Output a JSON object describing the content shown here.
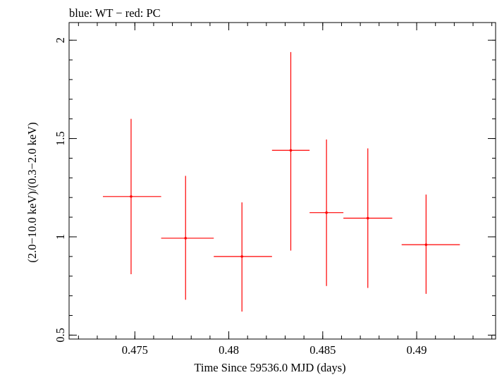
{
  "chart_data": {
    "type": "scatter",
    "title": "blue: WT − red: PC",
    "xlabel": "Time Since 59536.0 MJD (days)",
    "ylabel": "(2.0−10.0 keV)/(0.3−2.0 keV)",
    "xlim": [
      0.4715,
      0.4942
    ],
    "ylim": [
      0.48,
      2.09
    ],
    "x_ticks": [
      {
        "value": 0.475,
        "label": "0.475"
      },
      {
        "value": 0.48,
        "label": "0.48"
      },
      {
        "value": 0.485,
        "label": "0.485"
      },
      {
        "value": 0.49,
        "label": "0.49"
      }
    ],
    "y_ticks": [
      {
        "value": 0.5,
        "label": "0.5"
      },
      {
        "value": 1.0,
        "label": "1"
      },
      {
        "value": 1.5,
        "label": "1.5"
      },
      {
        "value": 2.0,
        "label": "2"
      }
    ],
    "x_minor_step": 0.001,
    "y_minor_step": 0.1,
    "grid": false,
    "series": [
      {
        "name": "PC",
        "color": "#ff0000",
        "points": [
          {
            "x": 0.4748,
            "xerr_low": 0.4733,
            "xerr_high": 0.4764,
            "y": 1.205,
            "yerr_low": 0.81,
            "yerr_high": 1.6
          },
          {
            "x": 0.4777,
            "xerr_low": 0.4764,
            "xerr_high": 0.4792,
            "y": 0.993,
            "yerr_low": 0.68,
            "yerr_high": 1.31
          },
          {
            "x": 0.4807,
            "xerr_low": 0.4792,
            "xerr_high": 0.4823,
            "y": 0.9,
            "yerr_low": 0.62,
            "yerr_high": 1.175
          },
          {
            "x": 0.4833,
            "xerr_low": 0.4823,
            "xerr_high": 0.4843,
            "y": 1.44,
            "yerr_low": 0.93,
            "yerr_high": 1.94
          },
          {
            "x": 0.4852,
            "xerr_low": 0.4843,
            "xerr_high": 0.4861,
            "y": 1.123,
            "yerr_low": 0.75,
            "yerr_high": 1.495
          },
          {
            "x": 0.4874,
            "xerr_low": 0.4861,
            "xerr_high": 0.4887,
            "y": 1.095,
            "yerr_low": 0.74,
            "yerr_high": 1.45
          },
          {
            "x": 0.4905,
            "xerr_low": 0.4892,
            "xerr_high": 0.4923,
            "y": 0.96,
            "yerr_low": 0.71,
            "yerr_high": 1.215
          }
        ]
      }
    ]
  }
}
